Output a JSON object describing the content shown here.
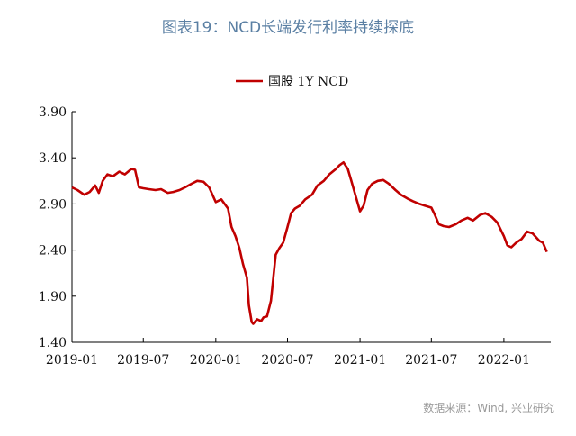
{
  "figure": {
    "title": "图表19：NCD长端发行利率持续探底",
    "source": "数据来源：Wind, 兴业研究"
  },
  "chart_data": {
    "type": "line",
    "title": "图表19：NCD长端发行利率持续探底",
    "xlabel": "",
    "ylabel": "",
    "legend_position": "top",
    "grid": false,
    "x_ticks": [
      "2019-01",
      "2019-07",
      "2020-01",
      "2020-07",
      "2021-01",
      "2021-07",
      "2022-01"
    ],
    "y_ticks": [
      "1.40",
      "1.90",
      "2.40",
      "2.90",
      "3.40",
      "3.90"
    ],
    "xlim": [
      "2019-01-01",
      "2022-04-30"
    ],
    "ylim": [
      1.4,
      3.9
    ],
    "series": [
      {
        "name": "国股 1Y NCD",
        "color": "#c00000",
        "points": [
          [
            "2019-01-01",
            3.08
          ],
          [
            "2019-01-15",
            3.05
          ],
          [
            "2019-02-01",
            3.0
          ],
          [
            "2019-02-15",
            3.03
          ],
          [
            "2019-03-01",
            3.1
          ],
          [
            "2019-03-10",
            3.02
          ],
          [
            "2019-03-20",
            3.15
          ],
          [
            "2019-04-01",
            3.22
          ],
          [
            "2019-04-15",
            3.2
          ],
          [
            "2019-05-01",
            3.25
          ],
          [
            "2019-05-15",
            3.22
          ],
          [
            "2019-06-01",
            3.28
          ],
          [
            "2019-06-10",
            3.27
          ],
          [
            "2019-06-20",
            3.08
          ],
          [
            "2019-07-01",
            3.07
          ],
          [
            "2019-07-15",
            3.06
          ],
          [
            "2019-08-01",
            3.05
          ],
          [
            "2019-08-15",
            3.06
          ],
          [
            "2019-09-01",
            3.02
          ],
          [
            "2019-09-15",
            3.03
          ],
          [
            "2019-10-01",
            3.05
          ],
          [
            "2019-10-15",
            3.08
          ],
          [
            "2019-11-01",
            3.12
          ],
          [
            "2019-11-15",
            3.15
          ],
          [
            "2019-12-01",
            3.14
          ],
          [
            "2019-12-15",
            3.08
          ],
          [
            "2020-01-01",
            2.92
          ],
          [
            "2020-01-15",
            2.95
          ],
          [
            "2020-02-01",
            2.85
          ],
          [
            "2020-02-10",
            2.65
          ],
          [
            "2020-02-20",
            2.55
          ],
          [
            "2020-03-01",
            2.42
          ],
          [
            "2020-03-10",
            2.25
          ],
          [
            "2020-03-20",
            2.1
          ],
          [
            "2020-03-25",
            1.8
          ],
          [
            "2020-04-01",
            1.62
          ],
          [
            "2020-04-05",
            1.6
          ],
          [
            "2020-04-15",
            1.65
          ],
          [
            "2020-04-25",
            1.63
          ],
          [
            "2020-05-01",
            1.67
          ],
          [
            "2020-05-10",
            1.68
          ],
          [
            "2020-05-20",
            1.85
          ],
          [
            "2020-06-01",
            2.35
          ],
          [
            "2020-06-10",
            2.42
          ],
          [
            "2020-06-20",
            2.48
          ],
          [
            "2020-07-01",
            2.65
          ],
          [
            "2020-07-10",
            2.8
          ],
          [
            "2020-07-20",
            2.85
          ],
          [
            "2020-08-01",
            2.88
          ],
          [
            "2020-08-15",
            2.95
          ],
          [
            "2020-09-01",
            3.0
          ],
          [
            "2020-09-15",
            3.1
          ],
          [
            "2020-10-01",
            3.15
          ],
          [
            "2020-10-15",
            3.22
          ],
          [
            "2020-11-01",
            3.28
          ],
          [
            "2020-11-10",
            3.32
          ],
          [
            "2020-11-20",
            3.35
          ],
          [
            "2020-12-01",
            3.28
          ],
          [
            "2020-12-10",
            3.15
          ],
          [
            "2020-12-20",
            3.0
          ],
          [
            "2021-01-01",
            2.82
          ],
          [
            "2021-01-10",
            2.88
          ],
          [
            "2021-01-20",
            3.05
          ],
          [
            "2021-02-01",
            3.12
          ],
          [
            "2021-02-15",
            3.15
          ],
          [
            "2021-03-01",
            3.16
          ],
          [
            "2021-03-15",
            3.12
          ],
          [
            "2021-04-01",
            3.05
          ],
          [
            "2021-04-15",
            3.0
          ],
          [
            "2021-05-01",
            2.96
          ],
          [
            "2021-05-15",
            2.93
          ],
          [
            "2021-06-01",
            2.9
          ],
          [
            "2021-06-15",
            2.88
          ],
          [
            "2021-07-01",
            2.86
          ],
          [
            "2021-07-10",
            2.78
          ],
          [
            "2021-07-20",
            2.68
          ],
          [
            "2021-08-01",
            2.66
          ],
          [
            "2021-08-15",
            2.65
          ],
          [
            "2021-09-01",
            2.68
          ],
          [
            "2021-09-15",
            2.72
          ],
          [
            "2021-10-01",
            2.75
          ],
          [
            "2021-10-15",
            2.72
          ],
          [
            "2021-11-01",
            2.78
          ],
          [
            "2021-11-15",
            2.8
          ],
          [
            "2021-12-01",
            2.76
          ],
          [
            "2021-12-15",
            2.7
          ],
          [
            "2022-01-01",
            2.55
          ],
          [
            "2022-01-10",
            2.45
          ],
          [
            "2022-01-20",
            2.43
          ],
          [
            "2022-02-01",
            2.48
          ],
          [
            "2022-02-15",
            2.52
          ],
          [
            "2022-03-01",
            2.6
          ],
          [
            "2022-03-15",
            2.58
          ],
          [
            "2022-04-01",
            2.5
          ],
          [
            "2022-04-10",
            2.48
          ],
          [
            "2022-04-20",
            2.38
          ]
        ]
      }
    ]
  }
}
